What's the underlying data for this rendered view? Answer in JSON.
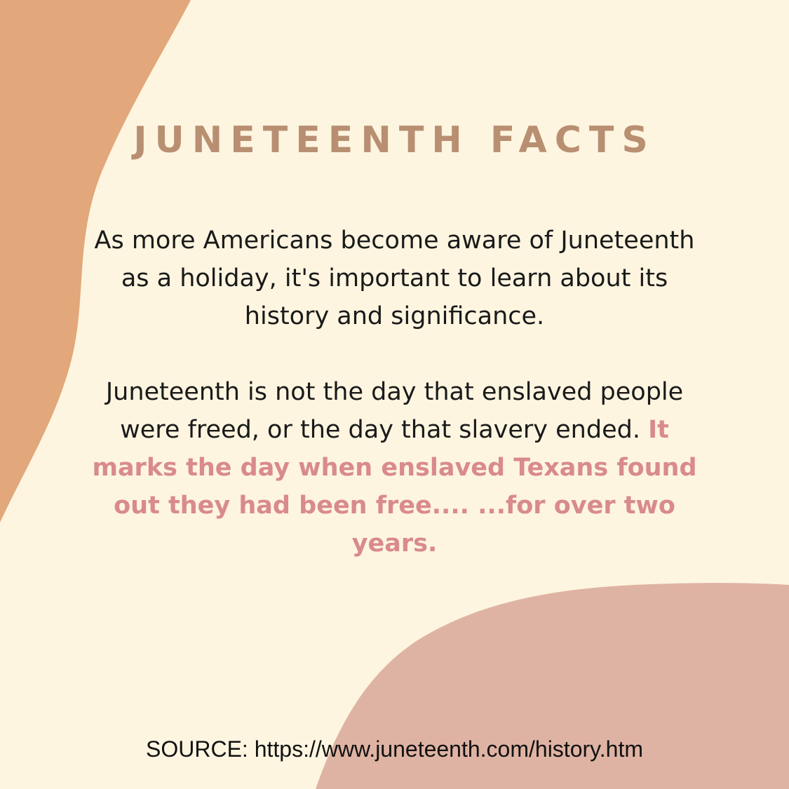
{
  "title": "JUNETEENTH FACTS",
  "paragraph_1": "As more Americans become aware of Juneteenth as a holiday, it's important to learn about its history and significance.",
  "paragraph_2": {
    "normal": "Juneteenth is not the day that enslaved people were freed, or the day that slavery ended.",
    "highlight": "It marks the day when enslaved Texans found out they had been free.... ...for over two years."
  },
  "source": "SOURCE: https://www.juneteenth.com/history.htm",
  "colors": {
    "background": "#fdf5e0",
    "left_blob": "#e2a77a",
    "bottom_blob": "#dfb3a3",
    "title": "#b98f72",
    "body_text": "#1a1a1a",
    "highlight_text": "#d98a8c",
    "source_text": "#111111"
  }
}
